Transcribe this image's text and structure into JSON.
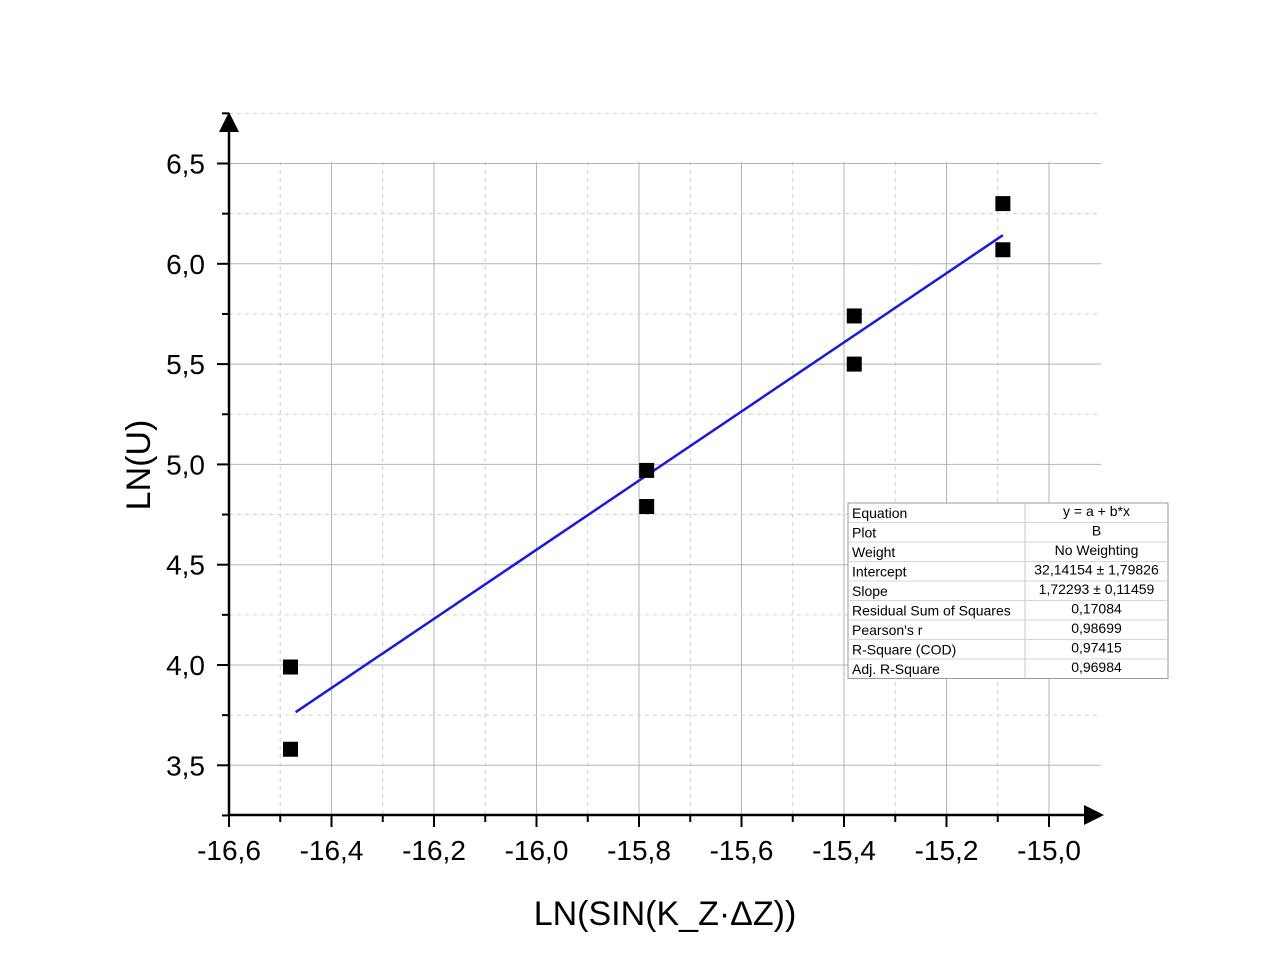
{
  "chart_data": {
    "type": "scatter",
    "xlabel": "LN(SIN(K_Z·ΔZ))",
    "ylabel": "LN(U)",
    "xlim": [
      -16.6,
      -14.9
    ],
    "ylim": [
      3.25,
      6.75
    ],
    "x_ticks": [
      -16.6,
      -16.4,
      -16.2,
      -16.0,
      -15.8,
      -15.6,
      -15.4,
      -15.2,
      -15.0
    ],
    "x_tick_labels": [
      "-16,6",
      "-16,4",
      "-16,2",
      "-16,0",
      "-15,8",
      "-15,6",
      "-15,4",
      "-15,2",
      "-15,0"
    ],
    "y_ticks": [
      3.5,
      4.0,
      4.5,
      5.0,
      5.5,
      6.0,
      6.5
    ],
    "y_tick_labels": [
      "3,5",
      "4,0",
      "4,5",
      "5,0",
      "5,5",
      "6,0",
      "6,5"
    ],
    "grid": true,
    "series": [
      {
        "type": "scatter",
        "marker": "square",
        "color": "#000000",
        "points": [
          {
            "x": -16.48,
            "y": 3.99
          },
          {
            "x": -16.48,
            "y": 3.58
          },
          {
            "x": -15.785,
            "y": 4.97
          },
          {
            "x": -15.785,
            "y": 4.79
          },
          {
            "x": -15.38,
            "y": 5.74
          },
          {
            "x": -15.38,
            "y": 5.5
          },
          {
            "x": -15.09,
            "y": 6.3
          },
          {
            "x": -15.09,
            "y": 6.07
          }
        ]
      },
      {
        "type": "line",
        "color": "#1a1adb",
        "intercept": 32.14154,
        "slope": 1.72293,
        "x_range": [
          -16.47,
          -15.09
        ]
      }
    ],
    "stats_table": {
      "rows": [
        {
          "label": "Equation",
          "value": "y = a + b*x"
        },
        {
          "label": "Plot",
          "value": "B"
        },
        {
          "label": "Weight",
          "value": "No Weighting"
        },
        {
          "label": "Intercept",
          "value": "32,14154 ± 1,79826"
        },
        {
          "label": "Slope",
          "value": "1,72293 ± 0,11459"
        },
        {
          "label": "Residual Sum of Squares",
          "value": "0,17084"
        },
        {
          "label": "Pearson's r",
          "value": "0,98699"
        },
        {
          "label": "R-Square (COD)",
          "value": "0,97415"
        },
        {
          "label": "Adj. R-Square",
          "value": "0,96984"
        }
      ]
    }
  }
}
